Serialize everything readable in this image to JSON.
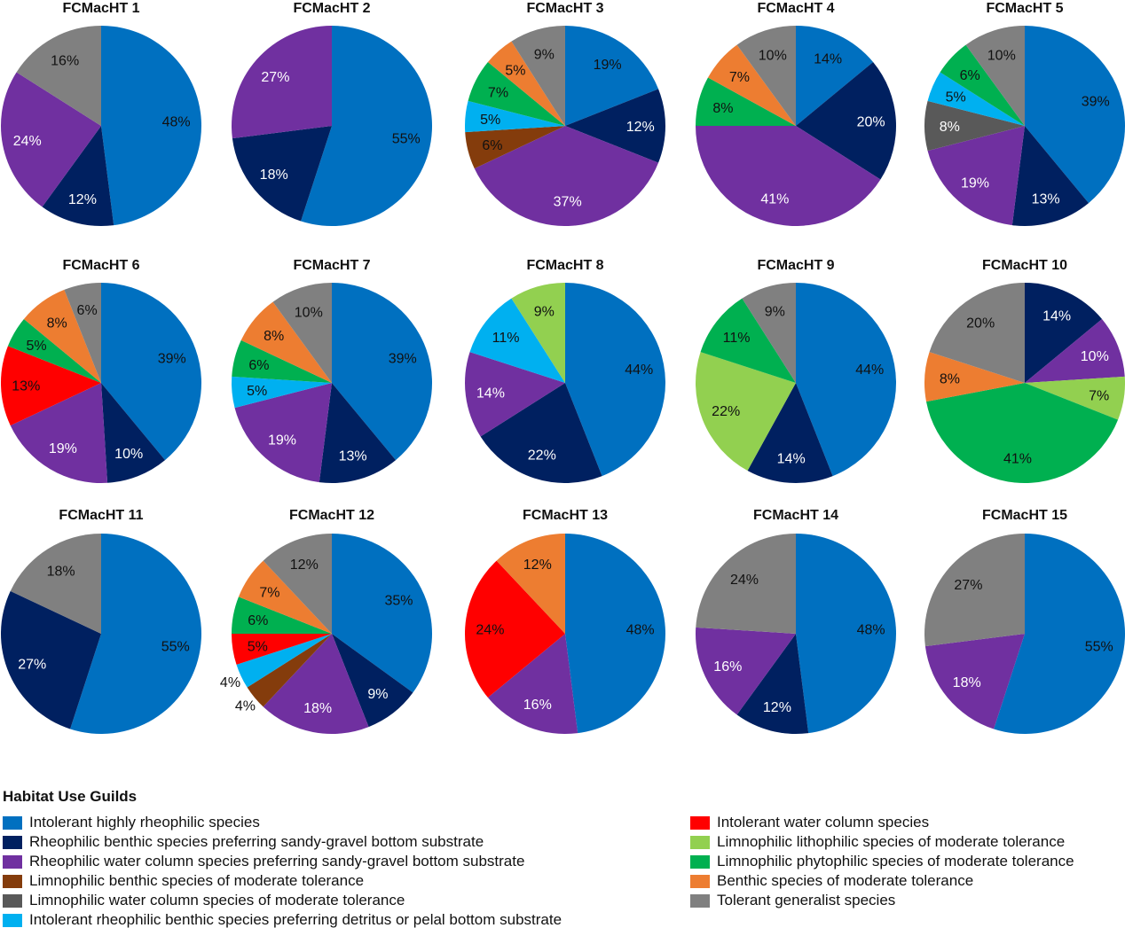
{
  "chart_data": {
    "type": "pie",
    "legend": {
      "title": "Habitat Use Guilds",
      "placement": "bottom",
      "entries": [
        {
          "label": "Intolerant highly rheophilic species",
          "color": "#0070C0"
        },
        {
          "label": "Rheophilic benthic species preferring sandy-gravel bottom substrate",
          "color": "#002060"
        },
        {
          "label": "Rheophilic water column species preferring sandy-gravel bottom substrate",
          "color": "#7030A0"
        },
        {
          "label": "Limnophilic benthic species of moderate tolerance",
          "color": "#843C0C"
        },
        {
          "label": "Limnophilic water column species of moderate tolerance",
          "color": "#595959"
        },
        {
          "label": "Intolerant rheophilic benthic species preferring detritus or pelal bottom substrate",
          "color": "#00B0F0"
        },
        {
          "label": "Intolerant water column species",
          "color": "#FF0000"
        },
        {
          "label": "Limnophilic lithophilic species of moderate tolerance",
          "color": "#92D050"
        },
        {
          "label": "Limnophilic phytophilic species of moderate tolerance",
          "color": "#00B050"
        },
        {
          "label": "Benthic species  of moderate tolerance",
          "color": "#ED7D31"
        },
        {
          "label": "Tolerant generalist species",
          "color": "#808080"
        }
      ]
    },
    "pies": [
      {
        "title": "FCMacHT 1",
        "slices": [
          [
            0,
            48
          ],
          [
            1,
            12
          ],
          [
            2,
            24
          ],
          [
            10,
            16
          ]
        ]
      },
      {
        "title": "FCMacHT 2",
        "slices": [
          [
            0,
            55
          ],
          [
            1,
            18
          ],
          [
            2,
            27
          ]
        ]
      },
      {
        "title": "FCMacHT 3",
        "slices": [
          [
            0,
            19
          ],
          [
            1,
            12
          ],
          [
            2,
            37
          ],
          [
            3,
            6
          ],
          [
            5,
            5
          ],
          [
            8,
            7
          ],
          [
            9,
            5
          ],
          [
            10,
            9
          ]
        ]
      },
      {
        "title": "FCMacHT 4",
        "slices": [
          [
            0,
            14
          ],
          [
            1,
            20
          ],
          [
            2,
            41
          ],
          [
            8,
            8
          ],
          [
            9,
            7
          ],
          [
            10,
            10
          ]
        ]
      },
      {
        "title": "FCMacHT 5",
        "slices": [
          [
            0,
            39
          ],
          [
            1,
            13
          ],
          [
            2,
            19
          ],
          [
            4,
            8
          ],
          [
            5,
            5
          ],
          [
            8,
            6
          ],
          [
            10,
            10
          ]
        ]
      },
      {
        "title": "FCMacHT 6",
        "slices": [
          [
            0,
            39
          ],
          [
            1,
            10
          ],
          [
            2,
            19
          ],
          [
            6,
            13
          ],
          [
            8,
            5
          ],
          [
            9,
            8
          ],
          [
            10,
            6
          ]
        ]
      },
      {
        "title": "FCMacHT 7",
        "slices": [
          [
            0,
            39
          ],
          [
            1,
            13
          ],
          [
            2,
            19
          ],
          [
            5,
            5
          ],
          [
            8,
            6
          ],
          [
            9,
            8
          ],
          [
            10,
            10
          ]
        ]
      },
      {
        "title": "FCMacHT 8",
        "slices": [
          [
            0,
            44
          ],
          [
            1,
            22
          ],
          [
            2,
            14
          ],
          [
            5,
            11
          ],
          [
            7,
            9
          ]
        ]
      },
      {
        "title": "FCMacHT 9",
        "slices": [
          [
            0,
            44
          ],
          [
            1,
            14
          ],
          [
            7,
            22
          ],
          [
            8,
            11
          ],
          [
            10,
            9
          ]
        ]
      },
      {
        "title": "FCMacHT 10",
        "slices": [
          [
            1,
            14
          ],
          [
            2,
            10
          ],
          [
            7,
            7
          ],
          [
            8,
            41
          ],
          [
            9,
            8
          ],
          [
            10,
            20
          ]
        ]
      },
      {
        "title": "FCMacHT 11",
        "slices": [
          [
            0,
            55
          ],
          [
            1,
            27
          ],
          [
            10,
            18
          ]
        ]
      },
      {
        "title": "FCMacHT 12",
        "slices": [
          [
            0,
            35
          ],
          [
            1,
            9
          ],
          [
            2,
            18
          ],
          [
            3,
            4
          ],
          [
            5,
            4
          ],
          [
            6,
            5
          ],
          [
            8,
            6
          ],
          [
            9,
            7
          ],
          [
            10,
            12
          ]
        ]
      },
      {
        "title": "FCMacHT 13",
        "slices": [
          [
            0,
            48
          ],
          [
            2,
            16
          ],
          [
            6,
            24
          ],
          [
            9,
            12
          ]
        ]
      },
      {
        "title": "FCMacHT 14",
        "slices": [
          [
            0,
            48
          ],
          [
            1,
            12
          ],
          [
            2,
            16
          ],
          [
            10,
            24
          ]
        ]
      },
      {
        "title": "FCMacHT 15",
        "slices": [
          [
            0,
            55
          ],
          [
            2,
            18
          ],
          [
            10,
            27
          ]
        ]
      }
    ],
    "value_format": "percent"
  }
}
